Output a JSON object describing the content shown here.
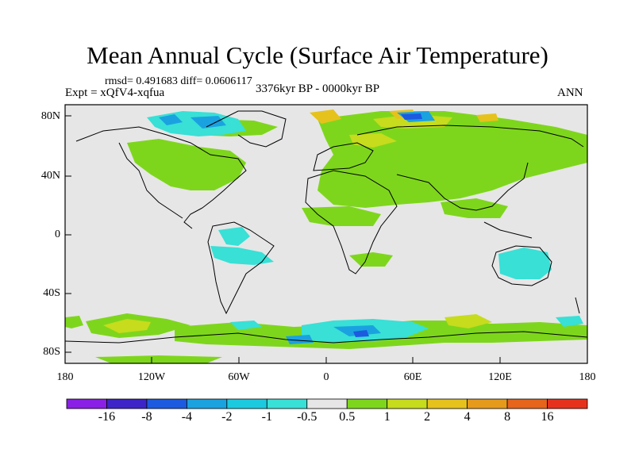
{
  "title": "Mean Annual Cycle (Surface Air Temperature)",
  "stats": "rmsd= 0.491683 diff= 0.0606117",
  "expt": "Expt = xQfV4-xqfua",
  "period": "3376kyr BP - 0000kyr BP",
  "season": "ANN",
  "lat_labels": [
    "80N",
    "40N",
    "0",
    "40S",
    "80S"
  ],
  "lon_labels": [
    "180",
    "120W",
    "60W",
    "0",
    "60E",
    "120E",
    "180"
  ],
  "colorbar": {
    "labels": [
      "-16",
      "-8",
      "-4",
      "-2",
      "-1",
      "-0.5",
      "0.5",
      "1",
      "2",
      "4",
      "8",
      "16"
    ],
    "colors": [
      "#8a1fe6",
      "#3c24c9",
      "#1c5ae0",
      "#1aa2e0",
      "#1ccae0",
      "#38e0d6",
      "#e6e6e6",
      "#7ed61c",
      "#c6dc1c",
      "#e6c21c",
      "#e69a1c",
      "#e6641c",
      "#e6321c"
    ]
  },
  "colors": {
    "land_neutral": "#e6e6e6",
    "coast": "#000000"
  }
}
